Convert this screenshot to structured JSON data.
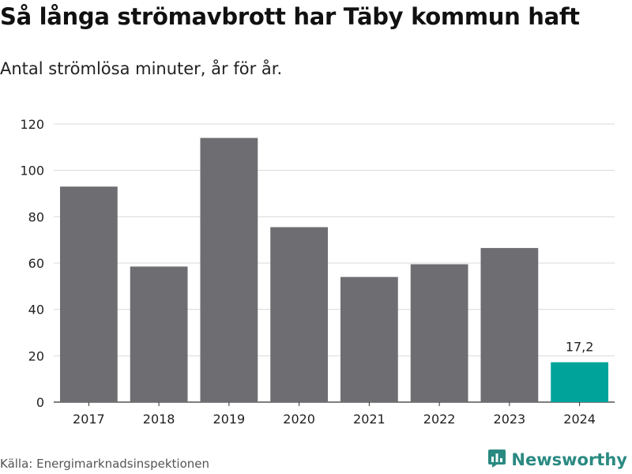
{
  "title": "Så långa strömavbrott har Täby kommun haft",
  "subtitle": "Antal strömlösa minuter, år för år.",
  "source": "Källa: Energimarknadsinspektionen",
  "brand": {
    "name": "Newsworthy",
    "icon": "newsworthy-logo-icon",
    "color": "#2a8a82"
  },
  "colors": {
    "bar": "#6e6d72",
    "highlight": "#00a39a",
    "grid": "#d9d9d9",
    "axis": "#333333"
  },
  "chart_data": {
    "type": "bar",
    "categories": [
      "2017",
      "2018",
      "2019",
      "2020",
      "2021",
      "2022",
      "2023",
      "2024"
    ],
    "values": [
      93,
      58.5,
      114,
      75.5,
      54,
      59.5,
      66.5,
      17.2
    ],
    "highlight_index": 7,
    "data_labels": [
      null,
      null,
      null,
      null,
      null,
      null,
      null,
      "17,2"
    ],
    "yticks": [
      0,
      20,
      40,
      60,
      80,
      100,
      120
    ],
    "ylim": [
      0,
      120
    ],
    "grid": true,
    "xlabel": "",
    "ylabel": ""
  }
}
